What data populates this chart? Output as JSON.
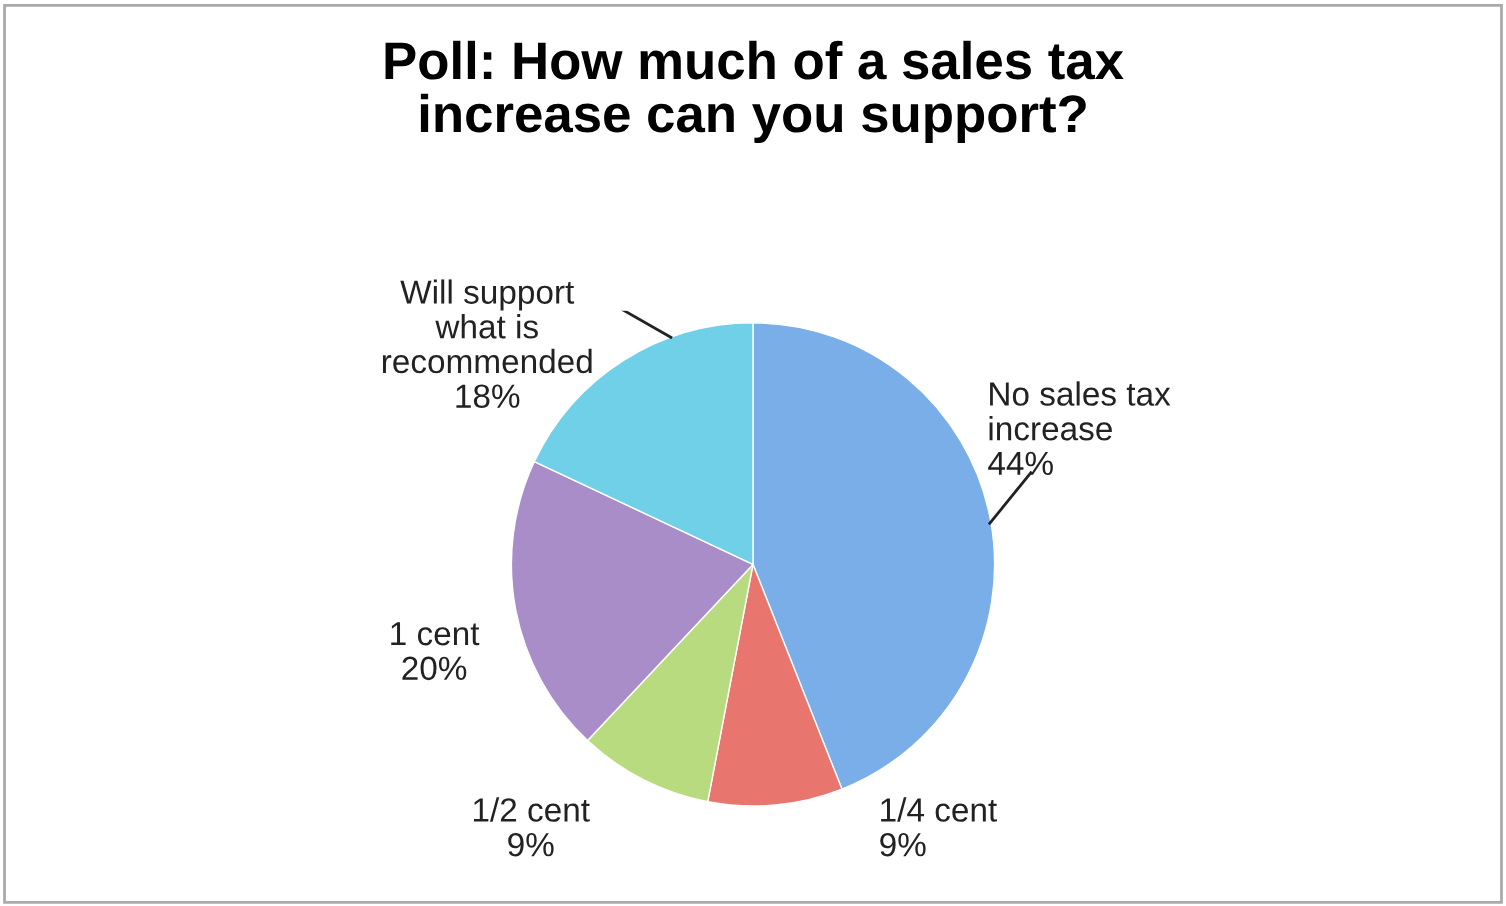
{
  "chart_data": {
    "type": "pie",
    "title": "Poll: How much of a sales tax\nincrease can you support?",
    "categories": [
      "No sales tax\nincrease",
      "1/4 cent",
      "1/2 cent",
      "1 cent",
      "Will support\nwhat is\nrecommended"
    ],
    "values": [
      44,
      9,
      9,
      20,
      18
    ],
    "colors": [
      "#7aaee8",
      "#e8766f",
      "#b8db80",
      "#a88dc8",
      "#6fd0e8"
    ],
    "value_labels": [
      "44%",
      "9%",
      "9%",
      "20%",
      "18%"
    ],
    "legend": false
  }
}
